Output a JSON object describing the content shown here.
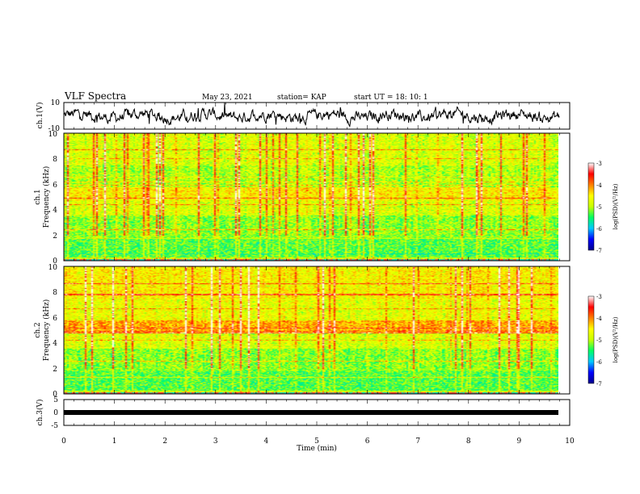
{
  "header": {
    "title": "VLF Spectra",
    "date": "May 23, 2021",
    "station": "station= KAP",
    "start_ut": "start  UT =   18: 10: 1"
  },
  "chart_data": [
    {
      "type": "line",
      "panel": "waveform-ch1",
      "ylabel": "ch.1(V)",
      "ylim": [
        -10,
        10
      ],
      "y_ticks": [
        "10",
        "-10"
      ],
      "xlim": [
        0,
        10
      ],
      "data_end_min": 9.8,
      "color": "#000000"
    },
    {
      "type": "heatmap",
      "panel": "spectrogram-ch1",
      "ylabel_line1": "ch.1",
      "ylabel_line2": "Frequency (kHz)",
      "ylim": [
        0,
        10
      ],
      "y_ticks": [
        "0",
        "2",
        "4",
        "6",
        "8",
        "10"
      ],
      "xlim": [
        0,
        10
      ],
      "data_end_min": 9.8,
      "colorbar": {
        "label": "log(PSD)(V²/Hz)",
        "min": -7,
        "max": -3,
        "ticks": [
          "-3",
          "-4",
          "-5",
          "-6",
          "-7"
        ],
        "colors": [
          "#00008b",
          "#0000ff",
          "#00c8ff",
          "#00ff64",
          "#c8ff00",
          "#ffff00",
          "#ff8000",
          "#ff0000",
          "#ffffff"
        ]
      }
    },
    {
      "type": "heatmap",
      "panel": "spectrogram-ch2",
      "ylabel_line1": "ch.2",
      "ylabel_line2": "Frequency (kHz)",
      "ylim": [
        0,
        10
      ],
      "y_ticks": [
        "0",
        "2",
        "4",
        "6",
        "8",
        "10"
      ],
      "xlim": [
        0,
        10
      ],
      "data_end_min": 9.8,
      "colorbar": {
        "label": "log(PSD)(V²/Hz)",
        "min": -7,
        "max": -3,
        "ticks": [
          "-3",
          "-4",
          "-5",
          "-6",
          "-7"
        ],
        "colors": [
          "#00008b",
          "#0000ff",
          "#00c8ff",
          "#00ff64",
          "#c8ff00",
          "#ffff00",
          "#ff8000",
          "#ff0000",
          "#ffffff"
        ]
      }
    },
    {
      "type": "line",
      "panel": "waveform-ch3",
      "ylabel": "ch.3(V)",
      "ylim": [
        -5,
        5
      ],
      "y_ticks": [
        "5",
        "0",
        "-5"
      ],
      "xlim": [
        0,
        10
      ],
      "x_ticks": [
        "0",
        "1",
        "2",
        "3",
        "4",
        "5",
        "6",
        "7",
        "8",
        "9",
        "10"
      ],
      "xlabel": "Time (min)",
      "data_end_min": 9.8,
      "color": "#000000"
    }
  ]
}
